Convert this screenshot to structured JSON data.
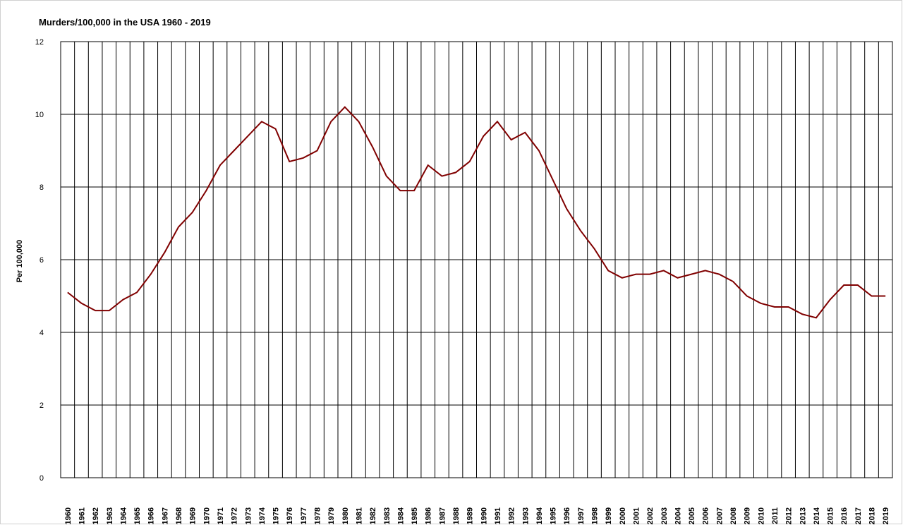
{
  "chart_data": {
    "type": "line",
    "title": "Murders/100,000 in the USA 1960 - 2019",
    "y_label": "Per 100,000",
    "categories": [
      "1960",
      "1961",
      "1962",
      "1963",
      "1964",
      "1965",
      "1966",
      "1967",
      "1968",
      "1969",
      "1970",
      "1971",
      "1972",
      "1973",
      "1974",
      "1975",
      "1976",
      "1977",
      "1978",
      "1979",
      "1980",
      "1981",
      "1982",
      "1983",
      "1984",
      "1985",
      "1986",
      "1987",
      "1988",
      "1989",
      "1990",
      "1991",
      "1992",
      "1993",
      "1994",
      "1995",
      "1996",
      "1997",
      "1998",
      "1999",
      "2000",
      "2001",
      "2002",
      "2003",
      "2004",
      "2005",
      "2006",
      "2007",
      "2008",
      "2009",
      "2010",
      "2011",
      "2012",
      "2013",
      "2014",
      "2015",
      "2016",
      "2017",
      "2018",
      "2019"
    ],
    "values": [
      5.1,
      4.8,
      4.6,
      4.6,
      4.9,
      5.1,
      5.6,
      6.2,
      6.9,
      7.3,
      7.9,
      8.6,
      9.0,
      9.4,
      9.8,
      9.6,
      8.7,
      8.8,
      9.0,
      9.8,
      10.2,
      9.8,
      9.1,
      8.3,
      7.9,
      7.9,
      8.6,
      8.3,
      8.4,
      8.7,
      9.4,
      9.8,
      9.3,
      9.5,
      9.0,
      8.2,
      7.4,
      6.8,
      6.3,
      5.7,
      5.5,
      5.6,
      5.6,
      5.7,
      5.5,
      5.6,
      5.7,
      5.6,
      5.4,
      5.0,
      4.8,
      4.7,
      4.7,
      4.5,
      4.4,
      4.9,
      5.3,
      5.3,
      5.0,
      5.0
    ],
    "color": "#800000",
    "ylim": [
      0,
      12
    ],
    "yticks": [
      0,
      2,
      4,
      6,
      8,
      10,
      12
    ],
    "grid": true
  }
}
